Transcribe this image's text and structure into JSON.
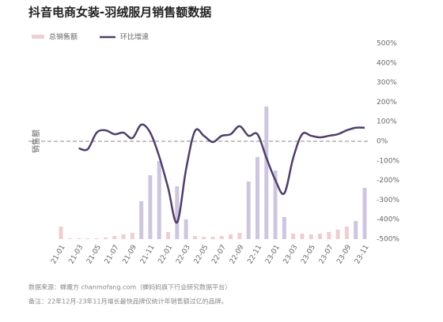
{
  "chart_data": {
    "type": "bar-line",
    "title": "抖音电商女装-羽绒服月销售额数据",
    "ylabel": "销售额",
    "categories": [
      "21-01",
      null,
      "21-03",
      null,
      "21-05",
      null,
      "21-07",
      null,
      "21-09",
      null,
      "21-11",
      null,
      "22-01",
      null,
      "22-03",
      null,
      "22-05",
      null,
      "22-07",
      null,
      "22-09",
      null,
      "22-11",
      null,
      "23-01",
      null,
      "23-03",
      null,
      "23-05",
      null,
      "23-07",
      null,
      "23-09",
      null,
      "23-11"
    ],
    "ylim": [
      0,
      248
    ],
    "y2lim": [
      -500,
      500
    ],
    "y2ticks": [
      {
        "value": 500,
        "label": "500%"
      },
      {
        "value": 400,
        "label": "400%"
      },
      {
        "value": 300,
        "label": "300%"
      },
      {
        "value": 200,
        "label": "200%"
      },
      {
        "value": 100,
        "label": "100%"
      },
      {
        "value": 0,
        "label": "0%"
      },
      {
        "value": -100,
        "label": "-100%"
      },
      {
        "value": -200,
        "label": "-200%"
      },
      {
        "value": -300,
        "label": "-300%"
      },
      {
        "value": -400,
        "label": "-400%"
      },
      {
        "value": -500,
        "label": "-500%"
      }
    ],
    "series": [
      {
        "name": "总销售额",
        "type": "bar",
        "color": "#efcdd0",
        "colors": [
          "#efcdd0",
          "#efcdd0",
          "#efcdd0",
          "#efcdd0",
          "#efcdd0",
          "#efcdd0",
          "#efcdd0",
          "#efcdd0",
          "#efcdd0",
          "#cdc6de",
          "#cdc6de",
          "#cdc6de",
          "#efcdd0",
          "#cdc6de",
          "#cdc6de",
          "#efcdd0",
          "#efcdd0",
          "#efcdd0",
          "#efcdd0",
          "#efcdd0",
          "#efcdd0",
          "#cdc6de",
          "#cdc6de",
          "#cdc6de",
          "#cdc6de",
          "#cdc6de",
          "#efcdd0",
          "#efcdd0",
          "#efcdd0",
          "#efcdd0",
          "#efcdd0",
          "#efcdd0",
          "#efcdd0",
          "#cdc6de",
          "#cdc6de"
        ],
        "values": [
          16,
          1,
          1,
          1,
          1,
          2,
          4,
          6,
          8,
          48,
          81,
          99,
          9,
          67,
          25,
          4,
          3,
          3,
          4,
          6,
          8,
          73,
          104,
          168,
          87,
          28,
          7,
          7,
          6,
          7,
          9,
          12,
          16,
          23,
          65
        ]
      },
      {
        "name": "环比增速",
        "type": "line",
        "axis": "y2",
        "color": "#4f3f6b",
        "values": [
          null,
          null,
          -36,
          -40,
          44,
          56,
          36,
          44,
          16,
          85,
          44,
          -77,
          -238,
          -415,
          -145,
          52,
          28,
          -4,
          28,
          36,
          77,
          28,
          36,
          -85,
          -198,
          -266,
          -85,
          36,
          28,
          20,
          28,
          36,
          56,
          69,
          69
        ]
      }
    ],
    "source": "数据来源：蝉魔方 chanmofang.com（蝉妈妈旗下行业研究数据平台）",
    "note": "备注：22年12月-23年11月增长最快品牌仅统计年销售额过亿的品牌。"
  }
}
